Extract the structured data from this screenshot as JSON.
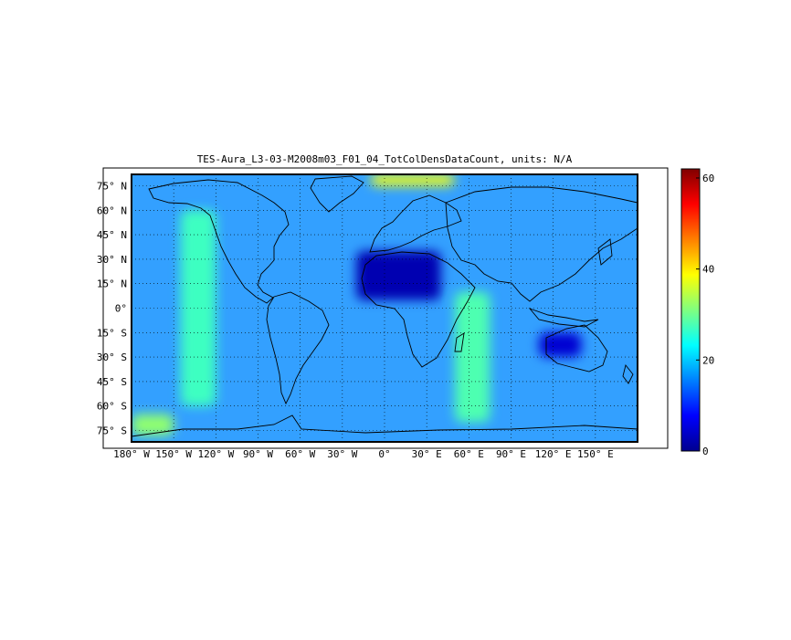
{
  "chart_data": {
    "type": "heatmap",
    "title": "TES-Aura_L3-03-M2008m03_F01_04_TotColDensDataCount, units: N/A",
    "x_ticks": [
      "180° W",
      "150° W",
      "120° W",
      "90° W",
      "60° W",
      "30° W",
      "0°",
      "30° E",
      "60° E",
      "90° E",
      "120° E",
      "150° E"
    ],
    "y_ticks": [
      "75° N",
      "60° N",
      "45° N",
      "30° N",
      "15° N",
      "0°",
      "15° S",
      "30° S",
      "45° S",
      "60° S",
      "75° S"
    ],
    "xlim": [
      -180,
      180
    ],
    "ylim": [
      -82,
      82
    ],
    "colorbar": {
      "ticks": [
        "0",
        "20",
        "40",
        "60"
      ],
      "range": [
        0,
        62
      ],
      "colormap": "jet"
    },
    "grid": true,
    "approximate_regions": [
      {
        "lon": [
          -145,
          -120
        ],
        "lat": [
          -60,
          60
        ],
        "value": 27
      },
      {
        "lon": [
          50,
          75
        ],
        "lat": [
          -70,
          10
        ],
        "value": 28
      },
      {
        "lon": [
          -20,
          40
        ],
        "lat": [
          5,
          35
        ],
        "value": 3
      },
      {
        "lon": [
          110,
          140
        ],
        "lat": [
          -30,
          -15
        ],
        "value": 5
      },
      {
        "lon": [
          -10,
          50
        ],
        "lat": [
          75,
          82
        ],
        "value": 38
      },
      {
        "lon": [
          -180,
          -150
        ],
        "lat": [
          -78,
          -65
        ],
        "value": 32
      }
    ]
  }
}
